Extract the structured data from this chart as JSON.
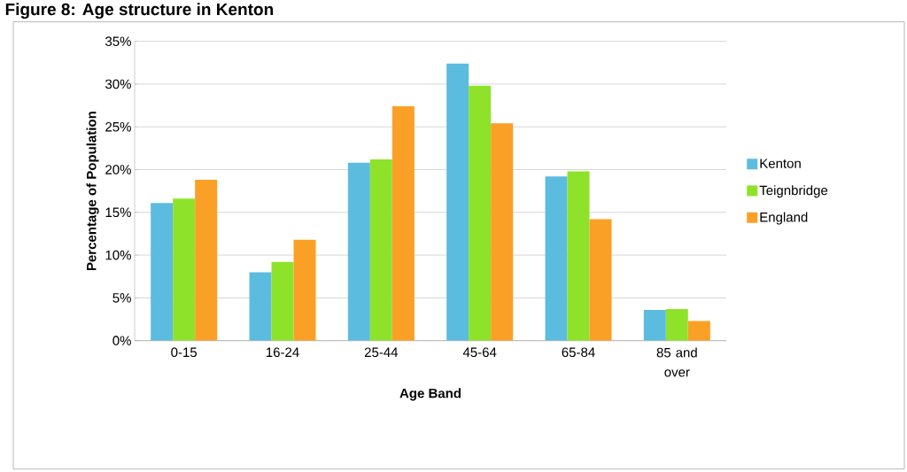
{
  "chart_data": {
    "type": "bar",
    "title": "Figure 8: Age structure in Kenton",
    "xlabel": "Age Band",
    "ylabel": "Percentage of Population",
    "categories": [
      "0-15",
      "16-24",
      "25-44",
      "45-64",
      "65-84",
      "85 and over"
    ],
    "series": [
      {
        "name": "Kenton",
        "color": "#5bbcdf",
        "values": [
          16.1,
          8.0,
          20.8,
          32.4,
          19.2,
          3.6
        ]
      },
      {
        "name": "Teignbridge",
        "color": "#8ee32a",
        "values": [
          16.6,
          9.2,
          21.2,
          29.8,
          19.8,
          3.7
        ]
      },
      {
        "name": "England",
        "color": "#fba026",
        "values": [
          18.8,
          11.8,
          27.4,
          25.4,
          14.2,
          2.3
        ]
      }
    ],
    "ylim": [
      0,
      35
    ],
    "yticks": [
      {
        "value": 0,
        "label": "0%"
      },
      {
        "value": 5,
        "label": "5%"
      },
      {
        "value": 10,
        "label": "10%"
      },
      {
        "value": 15,
        "label": "15%"
      },
      {
        "value": 20,
        "label": "20%"
      },
      {
        "value": 25,
        "label": "25%"
      },
      {
        "value": 30,
        "label": "30%"
      },
      {
        "value": 35,
        "label": "35%"
      }
    ],
    "grid": "y",
    "legend": "right"
  }
}
